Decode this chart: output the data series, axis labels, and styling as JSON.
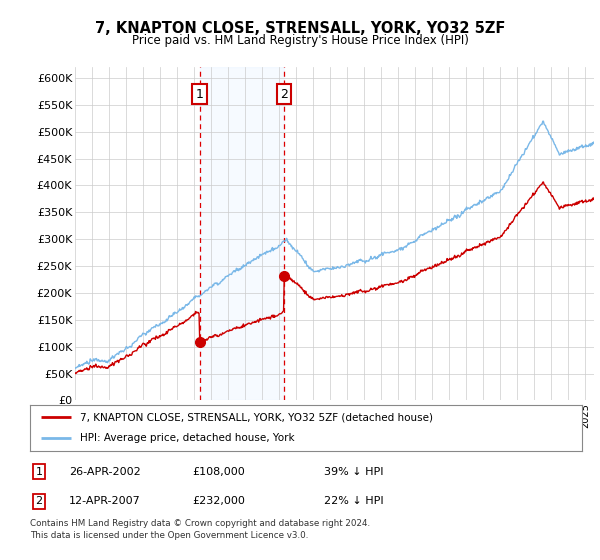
{
  "title": "7, KNAPTON CLOSE, STRENSALL, YORK, YO32 5ZF",
  "subtitle": "Price paid vs. HM Land Registry's House Price Index (HPI)",
  "ytick_labels": [
    "£0",
    "£50K",
    "£100K",
    "£150K",
    "£200K",
    "£250K",
    "£300K",
    "£350K",
    "£400K",
    "£450K",
    "£500K",
    "£550K",
    "£600K"
  ],
  "ytick_values": [
    0,
    50000,
    100000,
    150000,
    200000,
    250000,
    300000,
    350000,
    400000,
    450000,
    500000,
    550000,
    600000
  ],
  "xlim_start": 1995.0,
  "xlim_end": 2025.5,
  "ylim_min": 0,
  "ylim_max": 620000,
  "purchase1_date": 2002.32,
  "purchase1_price": 108000,
  "purchase2_date": 2007.28,
  "purchase2_price": 232000,
  "hpi_color": "#7ab8e8",
  "price_color": "#cc0000",
  "vline_color": "#dd0000",
  "shade_color": "#ddeeff",
  "legend_label1": "7, KNAPTON CLOSE, STRENSALL, YORK, YO32 5ZF (detached house)",
  "legend_label2": "HPI: Average price, detached house, York",
  "table_row1_num": "1",
  "table_row1_date": "26-APR-2002",
  "table_row1_price": "£108,000",
  "table_row1_hpi": "39% ↓ HPI",
  "table_row2_num": "2",
  "table_row2_date": "12-APR-2007",
  "table_row2_price": "£232,000",
  "table_row2_hpi": "22% ↓ HPI",
  "footnote_line1": "Contains HM Land Registry data © Crown copyright and database right 2024.",
  "footnote_line2": "This data is licensed under the Open Government Licence v3.0.",
  "background_color": "#ffffff"
}
